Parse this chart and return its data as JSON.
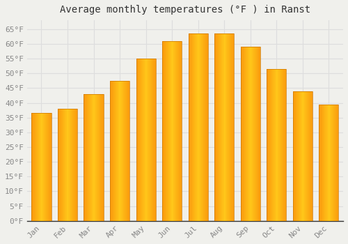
{
  "title": "Average monthly temperatures (°F ) in Ranst",
  "months": [
    "Jan",
    "Feb",
    "Mar",
    "Apr",
    "May",
    "Jun",
    "Jul",
    "Aug",
    "Sep",
    "Oct",
    "Nov",
    "Dec"
  ],
  "values": [
    36.5,
    38.0,
    43.0,
    47.5,
    55.0,
    61.0,
    63.5,
    63.5,
    59.0,
    51.5,
    44.0,
    39.5
  ],
  "bar_color_main": "#FFA500",
  "bar_color_light": "#FFD060",
  "bar_color_edge": "#E08000",
  "background_color": "#F0F0EC",
  "grid_color": "#DDDDDD",
  "ylim": [
    0,
    68
  ],
  "yticks": [
    0,
    5,
    10,
    15,
    20,
    25,
    30,
    35,
    40,
    45,
    50,
    55,
    60,
    65
  ],
  "title_fontsize": 10,
  "tick_fontsize": 8,
  "tick_color": "#888888",
  "title_color": "#333333"
}
